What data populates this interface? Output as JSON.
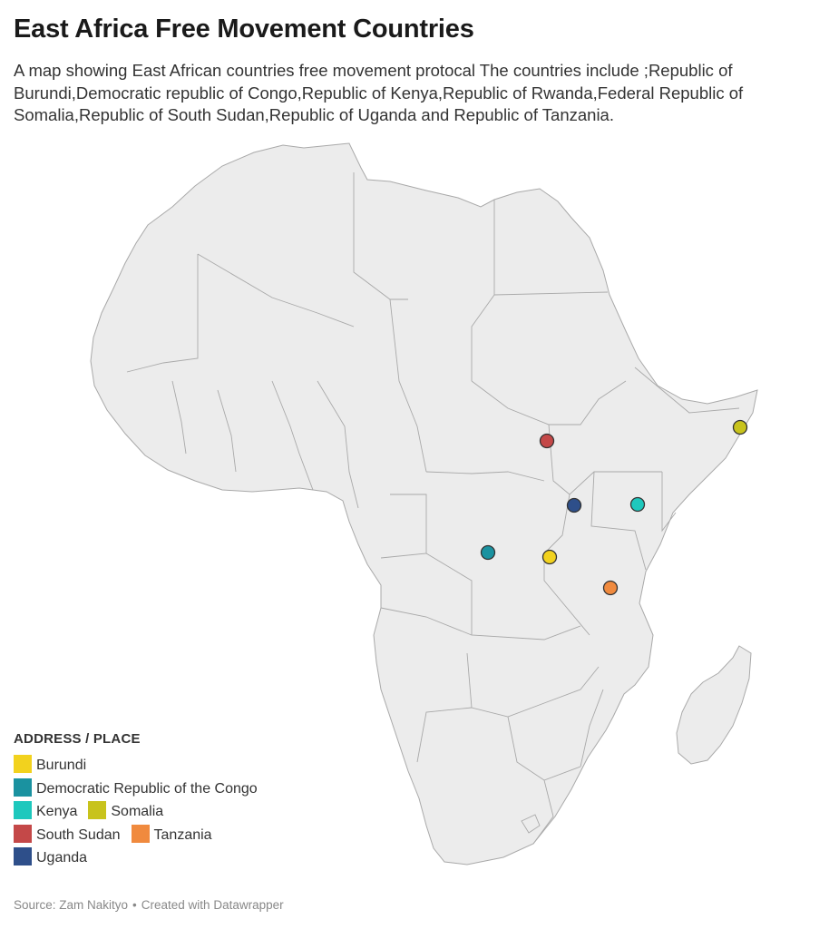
{
  "title": "East Africa Free Movement Countries",
  "description": "A map showing East African countries free movement protocal The countries include ;Republic of Burundi,Democratic republic of Congo,Republic of Kenya,Republic of Rwanda,Federal Republic of Somalia,Republic of South Sudan,Republic of Uganda and Republic of Tanzania.",
  "map": {
    "land_color": "#ececec",
    "border_color": "#a9a9a9",
    "markers": [
      {
        "name": "South Sudan",
        "color": "#c44848"
      },
      {
        "name": "Somalia",
        "color": "#c8c31c"
      },
      {
        "name": "Uganda",
        "color": "#2e4f8a"
      },
      {
        "name": "Kenya",
        "color": "#1ec8bd"
      },
      {
        "name": "Democratic Republic of the Congo",
        "color": "#1a92a0"
      },
      {
        "name": "Burundi",
        "color": "#f2d21e"
      },
      {
        "name": "Tanzania",
        "color": "#f08a3e"
      }
    ]
  },
  "legend": {
    "title": "ADDRESS / PLACE",
    "items": [
      {
        "label": "Burundi",
        "color": "#f2d21e"
      },
      {
        "label": "Democratic Republic of the Congo",
        "color": "#1a92a0"
      },
      {
        "label": "Kenya",
        "color": "#1ec8bd"
      },
      {
        "label": "Somalia",
        "color": "#c8c31c"
      },
      {
        "label": "South Sudan",
        "color": "#c44848"
      },
      {
        "label": "Tanzania",
        "color": "#f08a3e"
      },
      {
        "label": "Uganda",
        "color": "#2e4f8a"
      }
    ]
  },
  "source": {
    "text": "Source: Zam Nakityo",
    "separator": "•",
    "credit": "Created with Datawrapper"
  }
}
